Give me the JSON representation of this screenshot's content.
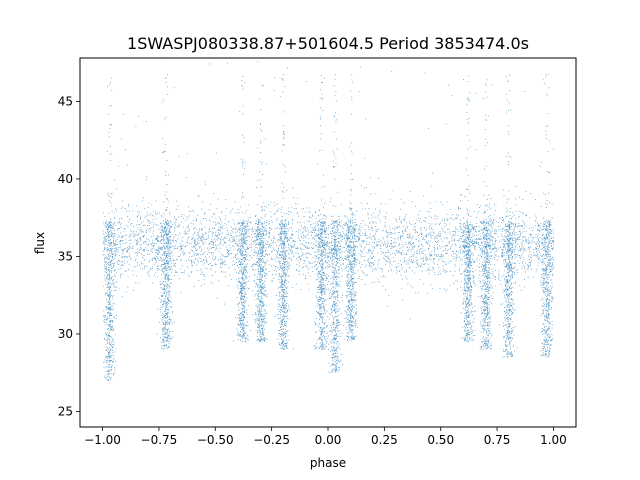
{
  "chart_data": {
    "type": "scatter",
    "title": "1SWASPJ080338.87+501604.5 Period 3853474.0s",
    "xlabel": "phase",
    "ylabel": "flux",
    "xlim": [
      -1.1,
      1.1
    ],
    "ylim": [
      24.0,
      47.8
    ],
    "xticks": [
      -1.0,
      -0.75,
      -0.5,
      -0.25,
      0.0,
      0.25,
      0.5,
      0.75,
      1.0
    ],
    "xtick_labels": [
      "−1.00",
      "−0.75",
      "−0.50",
      "−0.25",
      "0.00",
      "0.25",
      "0.50",
      "0.75",
      "1.00"
    ],
    "yticks": [
      25,
      30,
      35,
      40,
      45
    ],
    "ytick_labels": [
      "25",
      "30",
      "35",
      "40",
      "45"
    ],
    "grid": false,
    "legend": "none",
    "color": "#1f77b4",
    "series": [
      {
        "baseline_flux": 35.8,
        "typical_scatter": 1.2,
        "x_range": [
          -1.0,
          1.0
        ],
        "dips": [
          {
            "phase": -0.97,
            "min_flux": 27.0
          },
          {
            "phase": -0.72,
            "min_flux": 29.0
          },
          {
            "phase": -0.38,
            "min_flux": 29.5
          },
          {
            "phase": -0.3,
            "min_flux": 29.5
          },
          {
            "phase": -0.2,
            "min_flux": 29.0
          },
          {
            "phase": -0.03,
            "min_flux": 29.0
          },
          {
            "phase": 0.03,
            "min_flux": 27.5
          },
          {
            "phase": 0.1,
            "min_flux": 29.5
          },
          {
            "phase": 0.62,
            "min_flux": 29.5
          },
          {
            "phase": 0.7,
            "min_flux": 29.0
          },
          {
            "phase": 0.8,
            "min_flux": 28.5
          },
          {
            "phase": 0.97,
            "min_flux": 28.5
          }
        ]
      }
    ]
  }
}
